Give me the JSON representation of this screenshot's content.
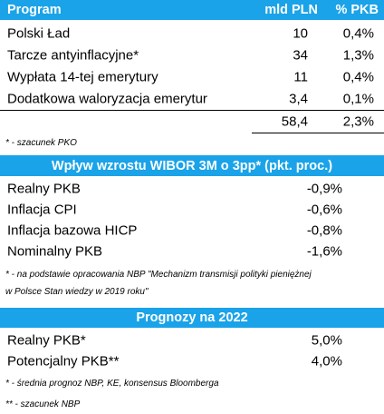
{
  "program_table": {
    "header": {
      "col1": "Program",
      "col2": "mld PLN",
      "col3": "% PKB"
    },
    "rows": [
      {
        "name": "Polski Ład",
        "mld": "10",
        "pkb": "0,4%"
      },
      {
        "name": "Tarcze antyinflacyjne*",
        "mld": "34",
        "pkb": "1,3%"
      },
      {
        "name": "Wypłata 14-tej emerytury",
        "mld": "11",
        "pkb": "0,4%"
      },
      {
        "name": "Dodatkowa waloryzacja emerytur",
        "mld": "3,4",
        "pkb": "0,1%"
      }
    ],
    "total": {
      "mld": "58,4",
      "pkb": "2,3%"
    },
    "footnote": "* - szacunek PKO"
  },
  "wibor_table": {
    "header": "Wpływ wzrostu WIBOR 3M o 3pp* (pkt. proc.)",
    "rows": [
      {
        "name": "Realny PKB",
        "value": "-0,9%"
      },
      {
        "name": "Inflacja CPI",
        "value": "-0,6%"
      },
      {
        "name": "Inflacja bazowa HICP",
        "value": "-0,8%"
      },
      {
        "name": "Nominalny PKB",
        "value": "-1,6%"
      }
    ],
    "footnote_line1": "* - na podstawie opracowania NBP \"Mechanizm transmisji polityki pieniężnej",
    "footnote_line2": "w Polsce Stan wiedzy w 2019 roku\""
  },
  "forecast_table": {
    "header": "Prognozy na 2022",
    "rows": [
      {
        "name": "Realny PKB*",
        "value": "5,0%"
      },
      {
        "name": "Potencjalny PKB**",
        "value": "4,0%"
      }
    ],
    "footnote1": "* - średnia prognoz NBP, KE, konsensus Bloomberga",
    "footnote2": "** - szacunek NBP"
  },
  "colors": {
    "header_bg": "#1aa3e8",
    "header_text": "#ffffff"
  }
}
